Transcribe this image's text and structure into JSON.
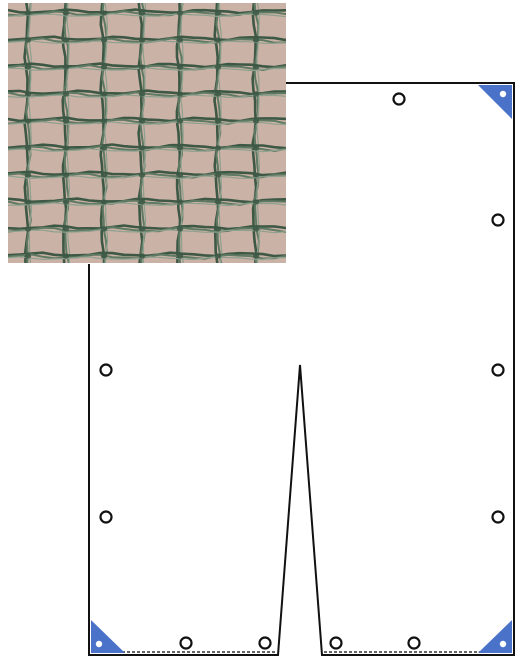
{
  "figure": {
    "type": "tarp-net-cover-diagram",
    "photo": {
      "subject": "green-woven-mesh-net",
      "colors": {
        "background": "#cbb2a6",
        "thread_dark": "#3d5845",
        "thread_mid": "#5f7a63",
        "thread_light": "#8ea08e"
      }
    },
    "diagram": {
      "outline_color": "#111111",
      "corner_color": "#4a72c8",
      "corner_dot_color": "#ffffff",
      "eyelet_stroke": "#111111",
      "dashed_hem_color": "#333333",
      "eyelet_count": 12,
      "reinforced_corner_count": 3,
      "has_center_slit": true
    }
  }
}
